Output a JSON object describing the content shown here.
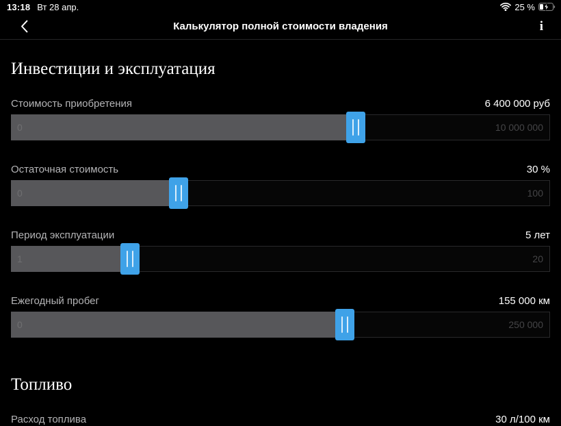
{
  "status_bar": {
    "time": "13:18",
    "date": "Вт 28 апр.",
    "battery_percent": "25 %"
  },
  "nav": {
    "title": "Калькулятор полной стоимости владения",
    "info_label": "i"
  },
  "sections": {
    "investments": {
      "title": "Инвестиции и эксплуатация"
    },
    "fuel": {
      "title": "Топливо"
    }
  },
  "sliders": [
    {
      "label": "Стоимость приобретения",
      "value": "6 400 000 руб",
      "min": "0",
      "max": "10 000 000",
      "percent": 64
    },
    {
      "label": "Остаточная стоимость",
      "value": "30 %",
      "min": "0",
      "max": "100",
      "percent": 31
    },
    {
      "label": "Период эксплуатации",
      "value": "5 лет",
      "min": "1",
      "max": "20",
      "percent": 22
    },
    {
      "label": "Ежегодный пробег",
      "value": "155 000 км",
      "min": "0",
      "max": "250 000",
      "percent": 62
    }
  ],
  "fuel_row": {
    "label": "Расход топлива",
    "value": "30 л/100 км"
  },
  "colors": {
    "accent_thumb": "#3fa2e8",
    "track_fill": "#57575a",
    "background": "#000000"
  }
}
